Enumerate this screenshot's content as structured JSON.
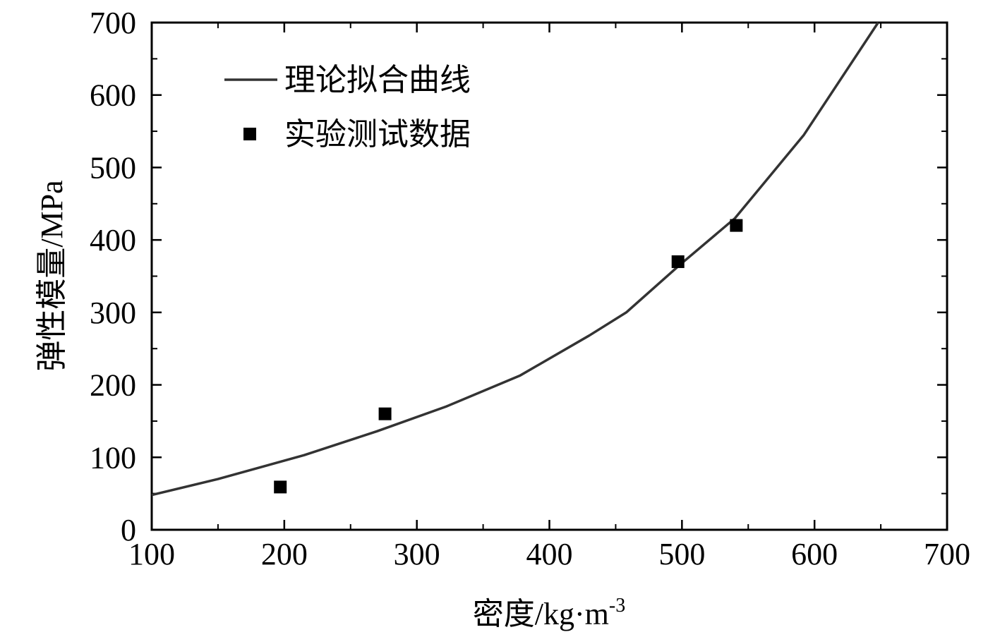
{
  "chart_data": {
    "type": "scatter",
    "title": "",
    "xlabel": "密度/kg·m",
    "xlabel_sup": "-3",
    "ylabel": "弹性模量/MPa",
    "xlim": [
      100,
      700
    ],
    "ylim": [
      0,
      700
    ],
    "x_ticks": [
      100,
      200,
      300,
      400,
      500,
      600,
      700
    ],
    "y_ticks": [
      0,
      100,
      200,
      300,
      400,
      500,
      600,
      700
    ],
    "x_ticks_labels": [
      "100",
      "200",
      "300",
      "400",
      "500",
      "600",
      "700"
    ],
    "y_ticks_labels": [
      "0",
      "100",
      "200",
      "300",
      "400",
      "500",
      "600",
      "700"
    ],
    "grid": false,
    "legend_position": "top-left",
    "series": [
      {
        "name": "理论拟合曲线",
        "kind": "line",
        "color": "#333333",
        "x": [
          100,
          150,
          215,
          270,
          322,
          378,
          430,
          458,
          498,
          540,
          592,
          648
        ],
        "y": [
          48,
          70,
          103,
          136,
          170,
          213,
          268,
          300,
          365,
          430,
          545,
          700
        ]
      },
      {
        "name": "实验测试数据",
        "kind": "scatter",
        "marker": "square",
        "color": "#000000",
        "x": [
          197,
          276,
          497,
          541
        ],
        "y": [
          59,
          160,
          370,
          420
        ]
      }
    ]
  }
}
